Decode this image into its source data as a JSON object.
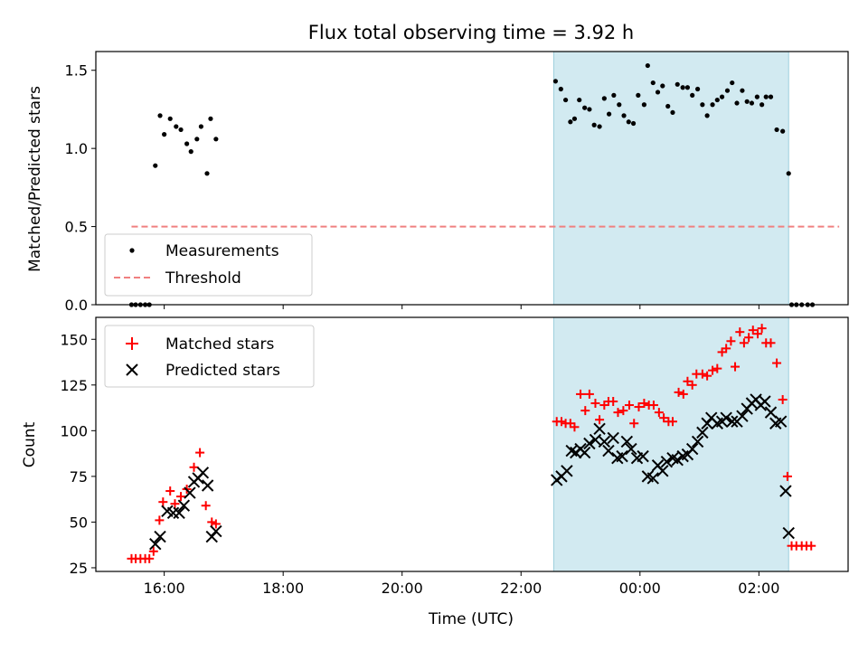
{
  "chart_data": [
    {
      "type": "scatter",
      "title": "Flux total observing time = 3.92 h",
      "xlabel": "",
      "ylabel": "Matched/Predicted stars",
      "xlim": [
        14.85,
        27.5
      ],
      "ylim": [
        0,
        1.62
      ],
      "yticks": [
        0.0,
        0.5,
        1.0,
        1.5
      ],
      "ytick_labels": [
        "0.0",
        "0.5",
        "1.0",
        "1.5"
      ],
      "xticks": [
        16,
        18,
        20,
        22,
        24,
        26
      ],
      "highlight_span": [
        22.55,
        26.5
      ],
      "threshold": {
        "name": "Threshold",
        "value": 0.5,
        "x": [
          15.45,
          27.35
        ],
        "color": "#f08080"
      },
      "legend": {
        "position": "lower-left",
        "entries": [
          "Measurements",
          "Threshold"
        ]
      },
      "series": [
        {
          "name": "Measurements",
          "marker": "dot",
          "color": "#000000",
          "points": [
            [
              15.45,
              0
            ],
            [
              15.52,
              0
            ],
            [
              15.6,
              0
            ],
            [
              15.68,
              0
            ],
            [
              15.75,
              0
            ],
            [
              15.85,
              0.89
            ],
            [
              15.93,
              1.21
            ],
            [
              16.0,
              1.09
            ],
            [
              16.1,
              1.19
            ],
            [
              16.2,
              1.14
            ],
            [
              16.28,
              1.12
            ],
            [
              16.38,
              1.03
            ],
            [
              16.45,
              0.98
            ],
            [
              16.55,
              1.06
            ],
            [
              16.62,
              1.14
            ],
            [
              16.72,
              0.84
            ],
            [
              16.78,
              1.19
            ],
            [
              16.87,
              1.06
            ],
            [
              22.58,
              1.43
            ],
            [
              22.67,
              1.38
            ],
            [
              22.75,
              1.31
            ],
            [
              22.83,
              1.17
            ],
            [
              22.9,
              1.19
            ],
            [
              22.98,
              1.31
            ],
            [
              23.07,
              1.26
            ],
            [
              23.15,
              1.25
            ],
            [
              23.23,
              1.15
            ],
            [
              23.32,
              1.14
            ],
            [
              23.4,
              1.32
            ],
            [
              23.48,
              1.22
            ],
            [
              23.56,
              1.34
            ],
            [
              23.65,
              1.28
            ],
            [
              23.73,
              1.21
            ],
            [
              23.81,
              1.17
            ],
            [
              23.89,
              1.16
            ],
            [
              23.97,
              1.34
            ],
            [
              24.07,
              1.28
            ],
            [
              24.13,
              1.53
            ],
            [
              24.22,
              1.42
            ],
            [
              24.3,
              1.36
            ],
            [
              24.38,
              1.4
            ],
            [
              24.47,
              1.27
            ],
            [
              24.55,
              1.23
            ],
            [
              24.63,
              1.41
            ],
            [
              24.72,
              1.39
            ],
            [
              24.8,
              1.39
            ],
            [
              24.88,
              1.34
            ],
            [
              24.97,
              1.38
            ],
            [
              25.05,
              1.28
            ],
            [
              25.13,
              1.21
            ],
            [
              25.22,
              1.28
            ],
            [
              25.3,
              1.31
            ],
            [
              25.38,
              1.33
            ],
            [
              25.47,
              1.37
            ],
            [
              25.55,
              1.42
            ],
            [
              25.63,
              1.29
            ],
            [
              25.72,
              1.37
            ],
            [
              25.8,
              1.3
            ],
            [
              25.88,
              1.29
            ],
            [
              25.97,
              1.33
            ],
            [
              26.05,
              1.28
            ],
            [
              26.12,
              1.33
            ],
            [
              26.2,
              1.33
            ],
            [
              26.3,
              1.12
            ],
            [
              26.4,
              1.11
            ],
            [
              26.5,
              0.84
            ],
            [
              26.55,
              0
            ],
            [
              26.63,
              0
            ],
            [
              26.72,
              0
            ],
            [
              26.82,
              0
            ],
            [
              26.9,
              0
            ]
          ]
        }
      ]
    },
    {
      "type": "scatter",
      "title": "",
      "xlabel": "Time (UTC)",
      "ylabel": "Count",
      "xlim": [
        14.85,
        27.5
      ],
      "ylim": [
        23,
        162
      ],
      "yticks": [
        25,
        50,
        75,
        100,
        125,
        150
      ],
      "ytick_labels": [
        "25",
        "50",
        "75",
        "100",
        "125",
        "150"
      ],
      "xticks": [
        16,
        18,
        20,
        22,
        24,
        26
      ],
      "xtick_labels": [
        "16:00",
        "18:00",
        "20:00",
        "22:00",
        "00:00",
        "02:00"
      ],
      "highlight_span": [
        22.55,
        26.5
      ],
      "legend": {
        "position": "upper-left",
        "entries": [
          "Matched stars",
          "Predicted stars"
        ]
      },
      "series": [
        {
          "name": "Matched stars",
          "marker": "plus",
          "color": "#ff0000",
          "points": [
            [
              15.45,
              30
            ],
            [
              15.52,
              30
            ],
            [
              15.6,
              30
            ],
            [
              15.68,
              30
            ],
            [
              15.75,
              30
            ],
            [
              15.82,
              34
            ],
            [
              15.92,
              51
            ],
            [
              15.98,
              61
            ],
            [
              16.1,
              67
            ],
            [
              16.18,
              60
            ],
            [
              16.28,
              64
            ],
            [
              16.38,
              68
            ],
            [
              16.5,
              80
            ],
            [
              16.6,
              88
            ],
            [
              16.7,
              59
            ],
            [
              16.8,
              50
            ],
            [
              16.87,
              49
            ],
            [
              22.6,
              105
            ],
            [
              22.68,
              105
            ],
            [
              22.75,
              104
            ],
            [
              22.83,
              104
            ],
            [
              22.9,
              102
            ],
            [
              23.0,
              120
            ],
            [
              23.08,
              111
            ],
            [
              23.15,
              120
            ],
            [
              23.25,
              115
            ],
            [
              23.32,
              106
            ],
            [
              23.4,
              114
            ],
            [
              23.47,
              116
            ],
            [
              23.55,
              116
            ],
            [
              23.63,
              110
            ],
            [
              23.72,
              111
            ],
            [
              23.82,
              114
            ],
            [
              23.9,
              104
            ],
            [
              23.98,
              113
            ],
            [
              24.07,
              115
            ],
            [
              24.15,
              114
            ],
            [
              24.23,
              114
            ],
            [
              24.32,
              110
            ],
            [
              24.4,
              107
            ],
            [
              24.48,
              105
            ],
            [
              24.55,
              105
            ],
            [
              24.65,
              121
            ],
            [
              24.73,
              120
            ],
            [
              24.8,
              127
            ],
            [
              24.88,
              125
            ],
            [
              24.95,
              131
            ],
            [
              25.05,
              131
            ],
            [
              25.13,
              130
            ],
            [
              25.22,
              133
            ],
            [
              25.3,
              134
            ],
            [
              25.38,
              143
            ],
            [
              25.45,
              145
            ],
            [
              25.53,
              149
            ],
            [
              25.6,
              135
            ],
            [
              25.68,
              154
            ],
            [
              25.75,
              148
            ],
            [
              25.83,
              151
            ],
            [
              25.9,
              155
            ],
            [
              25.98,
              153
            ],
            [
              26.05,
              156
            ],
            [
              26.12,
              148
            ],
            [
              26.2,
              148
            ],
            [
              26.3,
              137
            ],
            [
              26.4,
              117
            ],
            [
              26.48,
              75
            ],
            [
              26.55,
              37
            ],
            [
              26.63,
              37
            ],
            [
              26.72,
              37
            ],
            [
              26.8,
              37
            ],
            [
              26.88,
              37
            ]
          ]
        },
        {
          "name": "Predicted stars",
          "marker": "cross",
          "color": "#000000",
          "points": [
            [
              15.85,
              38
            ],
            [
              15.93,
              42
            ],
            [
              16.05,
              56
            ],
            [
              16.15,
              55
            ],
            [
              16.25,
              55
            ],
            [
              16.33,
              59
            ],
            [
              16.43,
              66
            ],
            [
              16.5,
              72
            ],
            [
              16.57,
              74
            ],
            [
              16.65,
              77
            ],
            [
              16.73,
              70
            ],
            [
              16.8,
              42
            ],
            [
              16.87,
              45
            ],
            [
              22.6,
              73
            ],
            [
              22.68,
              75
            ],
            [
              22.77,
              78
            ],
            [
              22.85,
              89
            ],
            [
              22.92,
              88
            ],
            [
              23.0,
              90
            ],
            [
              23.07,
              88
            ],
            [
              23.15,
              93
            ],
            [
              23.25,
              95
            ],
            [
              23.32,
              101
            ],
            [
              23.4,
              94
            ],
            [
              23.47,
              89
            ],
            [
              23.55,
              96
            ],
            [
              23.62,
              85
            ],
            [
              23.7,
              86
            ],
            [
              23.78,
              94
            ],
            [
              23.85,
              90
            ],
            [
              23.95,
              85
            ],
            [
              24.05,
              86
            ],
            [
              24.13,
              75
            ],
            [
              24.22,
              74
            ],
            [
              24.3,
              81
            ],
            [
              24.38,
              78
            ],
            [
              24.45,
              83
            ],
            [
              24.55,
              85
            ],
            [
              24.63,
              84
            ],
            [
              24.72,
              86
            ],
            [
              24.8,
              87
            ],
            [
              24.88,
              90
            ],
            [
              24.97,
              94
            ],
            [
              25.05,
              99
            ],
            [
              25.13,
              104
            ],
            [
              25.2,
              107
            ],
            [
              25.3,
              104
            ],
            [
              25.38,
              105
            ],
            [
              25.45,
              107
            ],
            [
              25.55,
              105
            ],
            [
              25.63,
              105
            ],
            [
              25.72,
              108
            ],
            [
              25.8,
              112
            ],
            [
              25.88,
              115
            ],
            [
              25.95,
              117
            ],
            [
              26.03,
              114
            ],
            [
              26.1,
              116
            ],
            [
              26.2,
              110
            ],
            [
              26.28,
              104
            ],
            [
              26.37,
              105
            ],
            [
              26.45,
              67
            ],
            [
              26.5,
              44
            ]
          ]
        }
      ]
    }
  ]
}
